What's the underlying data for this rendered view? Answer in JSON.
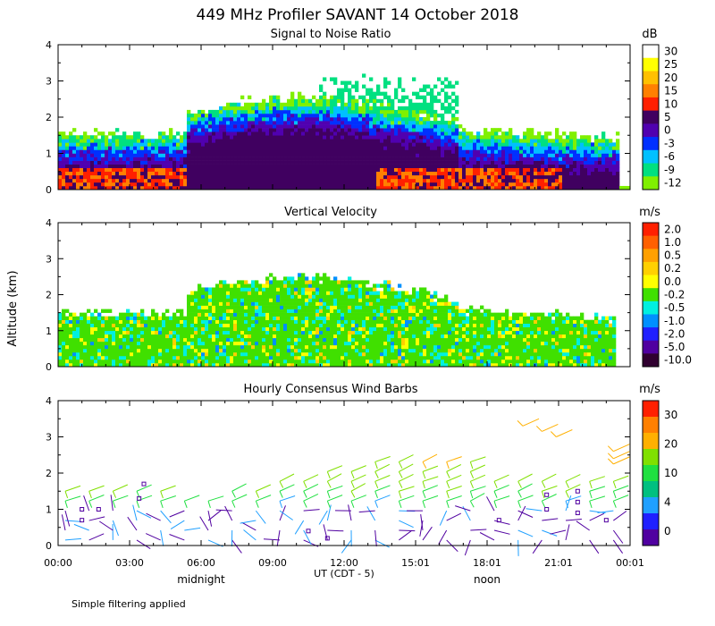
{
  "title": "449 MHz Profiler SAVANT 14 October 2018",
  "ylabel": "Altitude (km)",
  "xlabel": "UT  (CDT - 5)",
  "x_ticks": [
    "00:00",
    "03:00",
    "06:00",
    "09:00",
    "12:00",
    "15:01",
    "18:01",
    "21:01",
    "00:01"
  ],
  "local_time_labels": {
    "midnight": "midnight",
    "noon": "noon"
  },
  "footnote": "Simple filtering applied",
  "chart_data": [
    {
      "type": "heatmap",
      "title": "Signal to Noise Ratio",
      "unit": "dB",
      "ylim": [
        0,
        4
      ],
      "y_ticks": [
        "0",
        "1",
        "2",
        "3",
        "4"
      ],
      "colorbar": {
        "labels": [
          "30",
          "25",
          "20",
          "15",
          "10",
          "5",
          "0",
          "-3",
          "-6",
          "-9",
          "-12"
        ],
        "colors": [
          "#ffffff",
          "#ffff00",
          "#ffc000",
          "#ff8000",
          "#ff2000",
          "#400060",
          "#5000b0",
          "#0030ff",
          "#00c0ff",
          "#00e080",
          "#80f000"
        ]
      }
    },
    {
      "type": "heatmap",
      "title": "Vertical Velocity",
      "unit": "m/s",
      "ylim": [
        0,
        4
      ],
      "y_ticks": [
        "0",
        "1",
        "2",
        "3",
        "4"
      ],
      "colorbar": {
        "labels": [
          "2.0",
          "1.0",
          "0.5",
          "0.2",
          "0.0",
          "-0.2",
          "-0.5",
          "-1.0",
          "-2.0",
          "-5.0",
          "-10.0"
        ],
        "colors": [
          "#ff2000",
          "#ff6000",
          "#ffa000",
          "#ffd000",
          "#ffff00",
          "#40e000",
          "#00f0e0",
          "#0090ff",
          "#2020ff",
          "#5000a0",
          "#300030"
        ]
      }
    },
    {
      "type": "scatter",
      "title": "Hourly Consensus Wind Barbs",
      "unit": "m/s",
      "ylim": [
        0,
        4
      ],
      "y_ticks": [
        "0",
        "1",
        "2",
        "3",
        "4"
      ],
      "colorbar": {
        "labels": [
          "30",
          "20",
          "10",
          "4",
          "0"
        ],
        "colors": [
          "#ff2000",
          "#ff8000",
          "#ffb000",
          "#80e000",
          "#20e040",
          "#00c080",
          "#20a0ff",
          "#2020ff",
          "#5000a0"
        ]
      }
    }
  ]
}
